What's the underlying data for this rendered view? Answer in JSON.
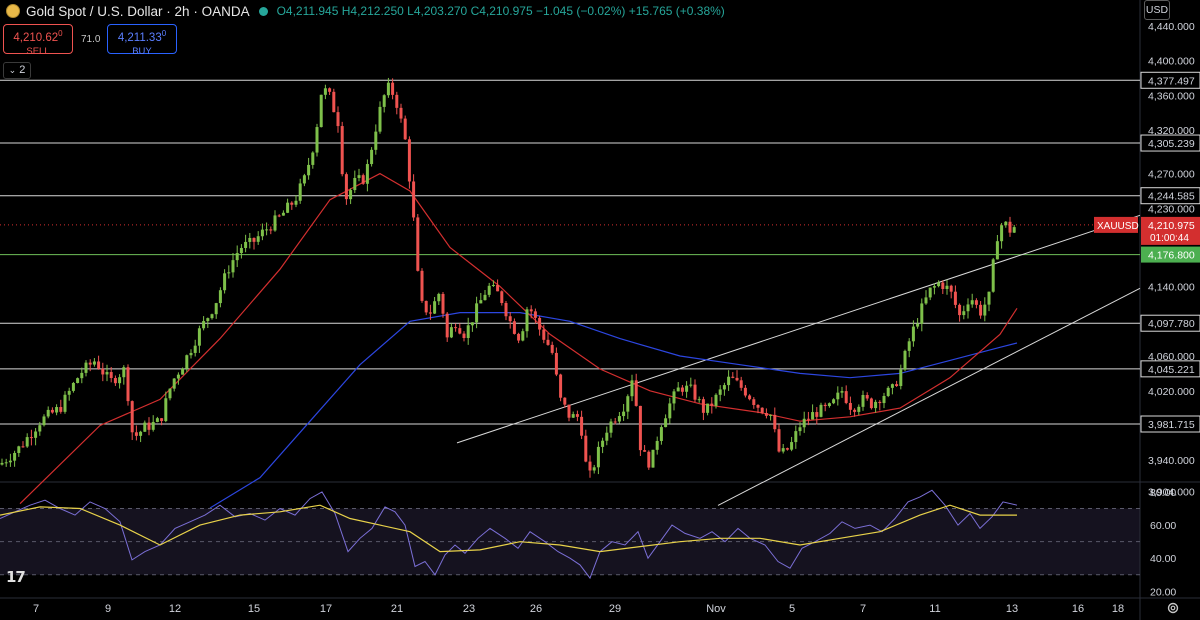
{
  "header": {
    "title": "Gold Spot / U.S. Dollar · 2h · OANDA",
    "open": "O4,211.945",
    "high": "H4,212.250",
    "low": "L4,203.270",
    "close": "C4,210.975",
    "change": "−1.045 (−0.02%)",
    "change2": "+15.765 (+0.38%)"
  },
  "trade": {
    "sell_price": "4,210.62",
    "sell_sup": "0",
    "sell_label": "SELL",
    "spread": "71.0",
    "buy_price": "4,211.33",
    "buy_sup": "0",
    "buy_label": "BUY"
  },
  "collapse_label": "2",
  "currency_button": "USD",
  "logo_text": "17",
  "colors": {
    "up": "#7ec04a",
    "down": "#ef5350",
    "ma_fast": "#d32f2f",
    "ma_slow": "#2c46e0",
    "rsi": "#7b6fd6",
    "rsi_ma": "#e8d24a",
    "price_tag": "#d32f2f",
    "support_tag": "#4caf50"
  },
  "chart_data": {
    "type": "candlestick",
    "symbol": "XAUUSD",
    "timeframe": "2h",
    "price_axis": {
      "range": [
        3885,
        4440
      ],
      "ticks": [
        4440,
        4400,
        4360,
        4320,
        4270,
        4230,
        4140,
        4060,
        4020,
        3940,
        3904
      ],
      "tick_labels": [
        "4,440.000",
        "4,400.000",
        "4,360.000",
        "4,320.000",
        "4,270.000",
        "4,230.000",
        "4,140.000",
        "4,060.000",
        "4,020.000",
        "3,940.000",
        "3,904.000"
      ]
    },
    "time_axis": {
      "labels": [
        "7",
        "9",
        "12",
        "15",
        "17",
        "21",
        "23",
        "26",
        "29",
        "Nov",
        "5",
        "7",
        "11",
        "13",
        "16",
        "18"
      ]
    },
    "horizontal_levels": [
      {
        "value": 4377.497,
        "label": "4,377.497"
      },
      {
        "value": 4305.239,
        "label": "4,305.239"
      },
      {
        "value": 4244.585,
        "label": "4,244.585"
      },
      {
        "value": 4176.8,
        "label": "4,176.800"
      },
      {
        "value": 4097.78,
        "label": "4,097.780"
      },
      {
        "value": 4045.221,
        "label": "4,045.221"
      },
      {
        "value": 3981.715,
        "label": "3,981.715"
      }
    ],
    "current_price": {
      "symbol": "XAUUSD",
      "value": 4210.975,
      "label": "4,210.975",
      "countdown": "01:00:44"
    },
    "trendlines": [
      {
        "from": {
          "time_idx": 457,
          "price": 3960
        },
        "to": {
          "time_idx": 1140,
          "price": 4222
        }
      },
      {
        "from": {
          "time_idx": 718,
          "price": 3888
        },
        "to": {
          "time_idx": 1140,
          "price": 4138
        }
      }
    ],
    "price_path_2h_closes": [
      [
        0,
        3935
      ],
      [
        20,
        3955
      ],
      [
        40,
        3985
      ],
      [
        60,
        4000
      ],
      [
        80,
        4040
      ],
      [
        95,
        4055
      ],
      [
        110,
        4030
      ],
      [
        125,
        4045
      ],
      [
        133,
        3965
      ],
      [
        145,
        3978
      ],
      [
        160,
        3985
      ],
      [
        172,
        4030
      ],
      [
        185,
        4055
      ],
      [
        200,
        4090
      ],
      [
        215,
        4120
      ],
      [
        228,
        4160
      ],
      [
        240,
        4185
      ],
      [
        252,
        4190
      ],
      [
        265,
        4205
      ],
      [
        280,
        4220
      ],
      [
        295,
        4240
      ],
      [
        305,
        4265
      ],
      [
        315,
        4310
      ],
      [
        322,
        4370
      ],
      [
        330,
        4358
      ],
      [
        338,
        4330
      ],
      [
        345,
        4240
      ],
      [
        355,
        4260
      ],
      [
        365,
        4265
      ],
      [
        378,
        4335
      ],
      [
        387,
        4370
      ],
      [
        395,
        4360
      ],
      [
        405,
        4310
      ],
      [
        412,
        4240
      ],
      [
        420,
        4120
      ],
      [
        430,
        4110
      ],
      [
        440,
        4135
      ],
      [
        447,
        4080
      ],
      [
        455,
        4100
      ],
      [
        465,
        4085
      ],
      [
        475,
        4110
      ],
      [
        488,
        4140
      ],
      [
        500,
        4130
      ],
      [
        510,
        4100
      ],
      [
        520,
        4080
      ],
      [
        528,
        4120
      ],
      [
        540,
        4090
      ],
      [
        552,
        4065
      ],
      [
        560,
        4010
      ],
      [
        570,
        3990
      ],
      [
        580,
        3990
      ],
      [
        588,
        3915
      ],
      [
        597,
        3945
      ],
      [
        606,
        3975
      ],
      [
        615,
        3990
      ],
      [
        625,
        4005
      ],
      [
        633,
        4040
      ],
      [
        641,
        3950
      ],
      [
        651,
        3935
      ],
      [
        660,
        3980
      ],
      [
        670,
        4005
      ],
      [
        680,
        4025
      ],
      [
        692,
        4020
      ],
      [
        705,
        3995
      ],
      [
        715,
        4010
      ],
      [
        730,
        4035
      ],
      [
        745,
        4020
      ],
      [
        760,
        4000
      ],
      [
        770,
        3995
      ],
      [
        780,
        3945
      ],
      [
        790,
        3955
      ],
      [
        800,
        3980
      ],
      [
        815,
        3995
      ],
      [
        830,
        4000
      ],
      [
        842,
        4020
      ],
      [
        852,
        4000
      ],
      [
        862,
        4010
      ],
      [
        872,
        4005
      ],
      [
        882,
        4015
      ],
      [
        892,
        4020
      ],
      [
        900,
        4040
      ],
      [
        910,
        4080
      ],
      [
        920,
        4110
      ],
      [
        930,
        4135
      ],
      [
        940,
        4145
      ],
      [
        950,
        4135
      ],
      [
        960,
        4105
      ],
      [
        970,
        4130
      ],
      [
        980,
        4110
      ],
      [
        990,
        4130
      ],
      [
        996,
        4195
      ],
      [
        1003,
        4215
      ],
      [
        1010,
        4205
      ],
      [
        1017,
        4211
      ]
    ],
    "moving_average_fast": [
      [
        20,
        3890
      ],
      [
        100,
        3980
      ],
      [
        160,
        4010
      ],
      [
        220,
        4080
      ],
      [
        280,
        4160
      ],
      [
        330,
        4240
      ],
      [
        380,
        4270
      ],
      [
        410,
        4250
      ],
      [
        450,
        4185
      ],
      [
        500,
        4140
      ],
      [
        550,
        4085
      ],
      [
        600,
        4045
      ],
      [
        650,
        4020
      ],
      [
        700,
        4005
      ],
      [
        760,
        3995
      ],
      [
        800,
        3985
      ],
      [
        850,
        3990
      ],
      [
        900,
        4000
      ],
      [
        950,
        4035
      ],
      [
        1000,
        4085
      ],
      [
        1017,
        4115
      ]
    ],
    "moving_average_slow": [
      [
        210,
        3885
      ],
      [
        260,
        3920
      ],
      [
        310,
        3985
      ],
      [
        360,
        4050
      ],
      [
        410,
        4100
      ],
      [
        460,
        4110
      ],
      [
        520,
        4110
      ],
      [
        570,
        4100
      ],
      [
        620,
        4080
      ],
      [
        680,
        4060
      ],
      [
        740,
        4050
      ],
      [
        800,
        4040
      ],
      [
        850,
        4035
      ],
      [
        900,
        4040
      ],
      [
        950,
        4055
      ],
      [
        1000,
        4070
      ],
      [
        1017,
        4075
      ]
    ],
    "rsi": {
      "range": [
        16,
        86
      ],
      "ticks": [
        80,
        60,
        40,
        20
      ],
      "tick_labels": [
        "80.00",
        "60.00",
        "40.00",
        "20.00"
      ],
      "band_upper": 70,
      "band_mid": 50,
      "band_lower": 30,
      "values": [
        [
          0,
          64
        ],
        [
          15,
          68
        ],
        [
          30,
          72
        ],
        [
          45,
          75
        ],
        [
          60,
          70
        ],
        [
          75,
          66
        ],
        [
          90,
          74
        ],
        [
          105,
          70
        ],
        [
          120,
          62
        ],
        [
          132,
          39
        ],
        [
          145,
          44
        ],
        [
          160,
          48
        ],
        [
          175,
          58
        ],
        [
          190,
          62
        ],
        [
          205,
          66
        ],
        [
          220,
          72
        ],
        [
          235,
          65
        ],
        [
          250,
          67
        ],
        [
          265,
          63
        ],
        [
          280,
          70
        ],
        [
          295,
          66
        ],
        [
          310,
          76
        ],
        [
          322,
          80
        ],
        [
          335,
          67
        ],
        [
          348,
          44
        ],
        [
          360,
          52
        ],
        [
          372,
          58
        ],
        [
          385,
          71
        ],
        [
          395,
          68
        ],
        [
          405,
          60
        ],
        [
          415,
          35
        ],
        [
          425,
          38
        ],
        [
          435,
          30
        ],
        [
          445,
          42
        ],
        [
          455,
          48
        ],
        [
          465,
          43
        ],
        [
          478,
          52
        ],
        [
          490,
          58
        ],
        [
          505,
          52
        ],
        [
          518,
          46
        ],
        [
          530,
          56
        ],
        [
          545,
          50
        ],
        [
          558,
          44
        ],
        [
          570,
          40
        ],
        [
          580,
          36
        ],
        [
          590,
          28
        ],
        [
          600,
          44
        ],
        [
          612,
          50
        ],
        [
          625,
          48
        ],
        [
          638,
          56
        ],
        [
          648,
          40
        ],
        [
          660,
          50
        ],
        [
          672,
          60
        ],
        [
          685,
          55
        ],
        [
          700,
          52
        ],
        [
          712,
          56
        ],
        [
          725,
          50
        ],
        [
          738,
          58
        ],
        [
          750,
          52
        ],
        [
          765,
          48
        ],
        [
          778,
          38
        ],
        [
          790,
          34
        ],
        [
          802,
          46
        ],
        [
          815,
          50
        ],
        [
          830,
          55
        ],
        [
          842,
          62
        ],
        [
          855,
          58
        ],
        [
          870,
          60
        ],
        [
          882,
          56
        ],
        [
          895,
          64
        ],
        [
          908,
          74
        ],
        [
          920,
          77
        ],
        [
          932,
          81
        ],
        [
          945,
          72
        ],
        [
          958,
          60
        ],
        [
          970,
          67
        ],
        [
          980,
          58
        ],
        [
          992,
          65
        ],
        [
          1003,
          74
        ],
        [
          1017,
          72
        ]
      ],
      "ma_values": [
        [
          0,
          66
        ],
        [
          40,
          71
        ],
        [
          80,
          70
        ],
        [
          120,
          60
        ],
        [
          160,
          48
        ],
        [
          200,
          60
        ],
        [
          240,
          66
        ],
        [
          280,
          68
        ],
        [
          320,
          72
        ],
        [
          350,
          64
        ],
        [
          380,
          60
        ],
        [
          410,
          56
        ],
        [
          440,
          44
        ],
        [
          480,
          45
        ],
        [
          520,
          50
        ],
        [
          560,
          48
        ],
        [
          600,
          44
        ],
        [
          640,
          47
        ],
        [
          680,
          50
        ],
        [
          720,
          52
        ],
        [
          760,
          52
        ],
        [
          800,
          48
        ],
        [
          840,
          52
        ],
        [
          880,
          56
        ],
        [
          920,
          66
        ],
        [
          950,
          72
        ],
        [
          980,
          66
        ],
        [
          1017,
          66
        ]
      ]
    }
  }
}
